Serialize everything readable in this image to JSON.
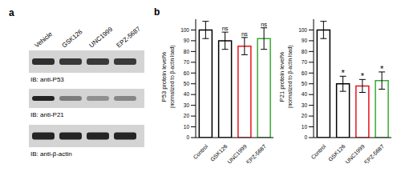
{
  "panel_a": {
    "label": "a",
    "lanes": [
      "Vehicle",
      "GSK126",
      "UNC1999",
      "EPZ-5687"
    ],
    "blots": [
      "IB: anti-P53",
      "IB: anti-P21",
      "IB: anti-β-actin"
    ]
  },
  "panel_b_label": "b",
  "chart_data": [
    {
      "type": "bar",
      "y_label": "P53 protein level%",
      "y_label_2": "(normalized to β-actin load)",
      "categories": [
        "Control",
        "GSK126",
        "UNC1999",
        "EPZ-5687"
      ],
      "values": [
        100,
        90,
        85,
        92
      ],
      "errors": [
        8,
        8,
        8,
        10
      ],
      "annotations": [
        null,
        "ns",
        "ns",
        "ns"
      ],
      "colors": [
        "#000000",
        "#000000",
        "#e8141b",
        "#3aa935"
      ],
      "ylim": [
        0,
        110
      ],
      "yticks": [
        0,
        10,
        20,
        30,
        40,
        50,
        60,
        70,
        80,
        90,
        100
      ]
    },
    {
      "type": "bar",
      "y_label": "P21 protein level%",
      "y_label_2": "(normalized to β-actin load)",
      "categories": [
        "Control",
        "GSK126",
        "UNC1999",
        "EPZ-5687"
      ],
      "values": [
        100,
        50,
        48,
        53
      ],
      "errors": [
        8,
        7,
        6,
        8
      ],
      "annotations": [
        null,
        "*",
        "*",
        "*"
      ],
      "colors": [
        "#000000",
        "#000000",
        "#e8141b",
        "#3aa935"
      ],
      "ylim": [
        0,
        110
      ],
      "yticks": [
        0,
        10,
        20,
        30,
        40,
        50,
        60,
        70,
        80,
        90,
        100
      ]
    }
  ]
}
